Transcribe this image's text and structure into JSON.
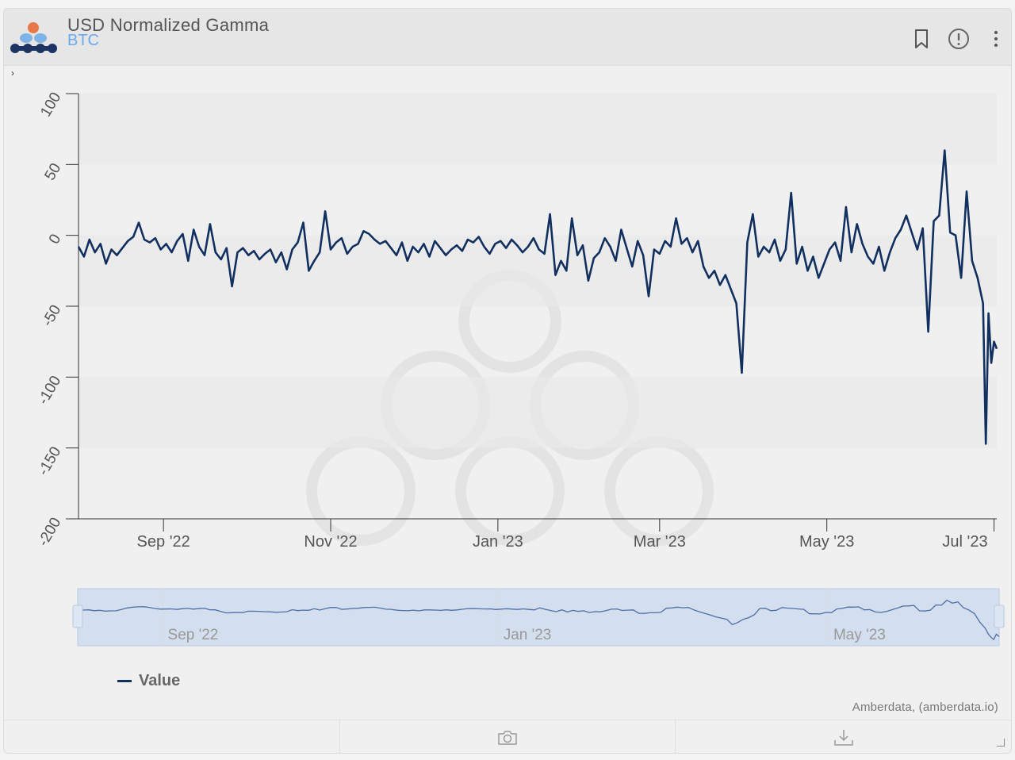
{
  "header": {
    "title": "USD Normalized Gamma",
    "subtitle": "BTC",
    "icons": [
      "bookmark-icon",
      "info-icon",
      "more-vertical-icon"
    ]
  },
  "footer": {
    "icons": [
      "",
      "camera-icon",
      "download-icon"
    ]
  },
  "credits": "Amberdata, (amberdata.io)",
  "colors": {
    "series": "#12305f",
    "subtitle": "#6aa8f0",
    "navigator": "#4f6fa8"
  },
  "chart_data": {
    "type": "line",
    "title": "USD Normalized Gamma",
    "subtitle": "BTC",
    "xlabel": "",
    "ylabel": "",
    "ylim": [
      -200,
      100
    ],
    "yticks": [
      100,
      50,
      0,
      -50,
      -100,
      -150,
      -200
    ],
    "xlim": [
      "2022-08-01",
      "2023-07-02"
    ],
    "xticks": [
      {
        "date": "2022-09-01",
        "label": "Sep '22"
      },
      {
        "date": "2022-11-01",
        "label": "Nov '22"
      },
      {
        "date": "2023-01-01",
        "label": "Jan '23"
      },
      {
        "date": "2023-03-01",
        "label": "Mar '23"
      },
      {
        "date": "2023-05-01",
        "label": "May '23"
      },
      {
        "date": "2023-07-01",
        "label": "Jul '23"
      }
    ],
    "navigator_ticks": [
      {
        "date": "2022-09-01",
        "label": "Sep '22"
      },
      {
        "date": "2023-01-01",
        "label": "Jan '23"
      },
      {
        "date": "2023-05-01",
        "label": "May '23"
      }
    ],
    "legend": "bottom-left",
    "series": [
      {
        "name": "Value",
        "points": [
          [
            "2022-08-01",
            -8
          ],
          [
            "2022-08-03",
            -15
          ],
          [
            "2022-08-05",
            -3
          ],
          [
            "2022-08-07",
            -12
          ],
          [
            "2022-08-09",
            -6
          ],
          [
            "2022-08-11",
            -20
          ],
          [
            "2022-08-13",
            -10
          ],
          [
            "2022-08-15",
            -14
          ],
          [
            "2022-08-17",
            -9
          ],
          [
            "2022-08-19",
            -4
          ],
          [
            "2022-08-21",
            -1
          ],
          [
            "2022-08-23",
            9
          ],
          [
            "2022-08-25",
            -3
          ],
          [
            "2022-08-27",
            -5
          ],
          [
            "2022-08-29",
            -2
          ],
          [
            "2022-08-31",
            -10
          ],
          [
            "2022-09-02",
            -6
          ],
          [
            "2022-09-04",
            -12
          ],
          [
            "2022-09-06",
            -4
          ],
          [
            "2022-09-08",
            1
          ],
          [
            "2022-09-10",
            -18
          ],
          [
            "2022-09-12",
            4
          ],
          [
            "2022-09-14",
            -8
          ],
          [
            "2022-09-16",
            -14
          ],
          [
            "2022-09-18",
            8
          ],
          [
            "2022-09-20",
            -12
          ],
          [
            "2022-09-22",
            -17
          ],
          [
            "2022-09-24",
            -9
          ],
          [
            "2022-09-26",
            -36
          ],
          [
            "2022-09-28",
            -12
          ],
          [
            "2022-09-30",
            -9
          ],
          [
            "2022-10-02",
            -14
          ],
          [
            "2022-10-04",
            -11
          ],
          [
            "2022-10-06",
            -17
          ],
          [
            "2022-10-08",
            -13
          ],
          [
            "2022-10-10",
            -10
          ],
          [
            "2022-10-12",
            -19
          ],
          [
            "2022-10-14",
            -12
          ],
          [
            "2022-10-16",
            -24
          ],
          [
            "2022-10-18",
            -10
          ],
          [
            "2022-10-20",
            -5
          ],
          [
            "2022-10-22",
            9
          ],
          [
            "2022-10-24",
            -25
          ],
          [
            "2022-10-26",
            -18
          ],
          [
            "2022-10-28",
            -12
          ],
          [
            "2022-10-30",
            17
          ],
          [
            "2022-11-01",
            -10
          ],
          [
            "2022-11-03",
            -5
          ],
          [
            "2022-11-05",
            -2
          ],
          [
            "2022-11-07",
            -13
          ],
          [
            "2022-11-09",
            -8
          ],
          [
            "2022-11-11",
            -6
          ],
          [
            "2022-11-13",
            3
          ],
          [
            "2022-11-15",
            1
          ],
          [
            "2022-11-17",
            -3
          ],
          [
            "2022-11-19",
            -6
          ],
          [
            "2022-11-21",
            -4
          ],
          [
            "2022-11-23",
            -9
          ],
          [
            "2022-11-25",
            -14
          ],
          [
            "2022-11-27",
            -5
          ],
          [
            "2022-11-29",
            -18
          ],
          [
            "2022-12-01",
            -8
          ],
          [
            "2022-12-03",
            -12
          ],
          [
            "2022-12-05",
            -6
          ],
          [
            "2022-12-07",
            -15
          ],
          [
            "2022-12-09",
            -4
          ],
          [
            "2022-12-11",
            -9
          ],
          [
            "2022-12-13",
            -14
          ],
          [
            "2022-12-15",
            -10
          ],
          [
            "2022-12-17",
            -7
          ],
          [
            "2022-12-19",
            -11
          ],
          [
            "2022-12-21",
            -3
          ],
          [
            "2022-12-23",
            -5
          ],
          [
            "2022-12-25",
            -1
          ],
          [
            "2022-12-27",
            -8
          ],
          [
            "2022-12-29",
            -13
          ],
          [
            "2022-12-31",
            -6
          ],
          [
            "2023-01-02",
            -4
          ],
          [
            "2023-01-04",
            -9
          ],
          [
            "2023-01-06",
            -3
          ],
          [
            "2023-01-08",
            -7
          ],
          [
            "2023-01-10",
            -12
          ],
          [
            "2023-01-12",
            -8
          ],
          [
            "2023-01-14",
            -2
          ],
          [
            "2023-01-16",
            -10
          ],
          [
            "2023-01-18",
            -13
          ],
          [
            "2023-01-20",
            15
          ],
          [
            "2023-01-22",
            -28
          ],
          [
            "2023-01-24",
            -18
          ],
          [
            "2023-01-26",
            -25
          ],
          [
            "2023-01-28",
            12
          ],
          [
            "2023-01-30",
            -14
          ],
          [
            "2023-02-01",
            -7
          ],
          [
            "2023-02-03",
            -32
          ],
          [
            "2023-02-05",
            -16
          ],
          [
            "2023-02-07",
            -12
          ],
          [
            "2023-02-09",
            -2
          ],
          [
            "2023-02-11",
            -8
          ],
          [
            "2023-02-13",
            -18
          ],
          [
            "2023-02-15",
            4
          ],
          [
            "2023-02-17",
            -9
          ],
          [
            "2023-02-19",
            -22
          ],
          [
            "2023-02-21",
            -4
          ],
          [
            "2023-02-23",
            -14
          ],
          [
            "2023-02-25",
            -43
          ],
          [
            "2023-02-27",
            -10
          ],
          [
            "2023-03-01",
            -13
          ],
          [
            "2023-03-03",
            -4
          ],
          [
            "2023-03-05",
            -8
          ],
          [
            "2023-03-07",
            12
          ],
          [
            "2023-03-09",
            -6
          ],
          [
            "2023-03-11",
            -2
          ],
          [
            "2023-03-13",
            -12
          ],
          [
            "2023-03-15",
            -4
          ],
          [
            "2023-03-17",
            -22
          ],
          [
            "2023-03-19",
            -30
          ],
          [
            "2023-03-21",
            -25
          ],
          [
            "2023-03-23",
            -35
          ],
          [
            "2023-03-25",
            -28
          ],
          [
            "2023-03-27",
            -38
          ],
          [
            "2023-03-29",
            -48
          ],
          [
            "2023-03-31",
            -97
          ],
          [
            "2023-04-02",
            -5
          ],
          [
            "2023-04-04",
            15
          ],
          [
            "2023-04-06",
            -15
          ],
          [
            "2023-04-08",
            -8
          ],
          [
            "2023-04-10",
            -12
          ],
          [
            "2023-04-12",
            -3
          ],
          [
            "2023-04-14",
            -18
          ],
          [
            "2023-04-16",
            -10
          ],
          [
            "2023-04-18",
            30
          ],
          [
            "2023-04-20",
            -20
          ],
          [
            "2023-04-22",
            -8
          ],
          [
            "2023-04-24",
            -25
          ],
          [
            "2023-04-26",
            -15
          ],
          [
            "2023-04-28",
            -30
          ],
          [
            "2023-04-30",
            -20
          ],
          [
            "2023-05-02",
            -10
          ],
          [
            "2023-05-04",
            -5
          ],
          [
            "2023-05-06",
            -18
          ],
          [
            "2023-05-08",
            20
          ],
          [
            "2023-05-10",
            -12
          ],
          [
            "2023-05-12",
            8
          ],
          [
            "2023-05-14",
            -6
          ],
          [
            "2023-05-16",
            -15
          ],
          [
            "2023-05-18",
            -20
          ],
          [
            "2023-05-20",
            -8
          ],
          [
            "2023-05-22",
            -25
          ],
          [
            "2023-05-24",
            -12
          ],
          [
            "2023-05-26",
            -2
          ],
          [
            "2023-05-28",
            4
          ],
          [
            "2023-05-30",
            14
          ],
          [
            "2023-06-01",
            2
          ],
          [
            "2023-06-03",
            -10
          ],
          [
            "2023-06-05",
            5
          ],
          [
            "2023-06-07",
            -68
          ],
          [
            "2023-06-09",
            10
          ],
          [
            "2023-06-11",
            14
          ],
          [
            "2023-06-13",
            60
          ],
          [
            "2023-06-15",
            2
          ],
          [
            "2023-06-17",
            0
          ],
          [
            "2023-06-19",
            -30
          ],
          [
            "2023-06-21",
            31
          ],
          [
            "2023-06-23",
            -18
          ],
          [
            "2023-06-25",
            -30
          ],
          [
            "2023-06-27",
            -48
          ],
          [
            "2023-06-28",
            -147
          ],
          [
            "2023-06-29",
            -55
          ],
          [
            "2023-06-30",
            -90
          ],
          [
            "2023-07-01",
            -75
          ],
          [
            "2023-07-02",
            -80
          ]
        ]
      }
    ]
  }
}
